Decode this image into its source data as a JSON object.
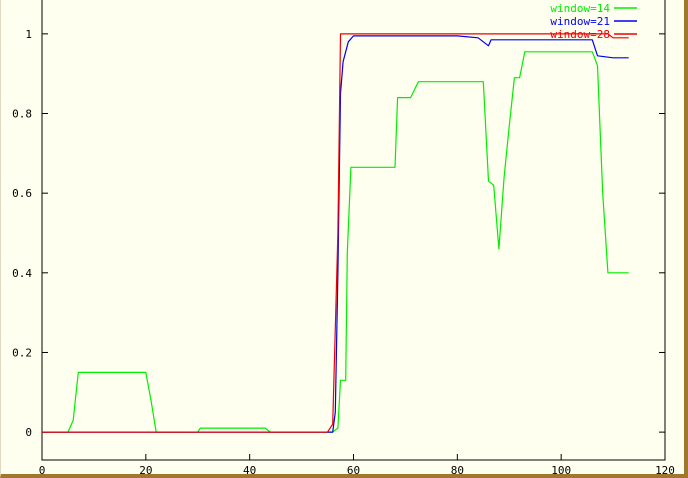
{
  "chart_data": {
    "type": "line",
    "title": "",
    "xlabel": "",
    "ylabel": "",
    "xlim": [
      0,
      120
    ],
    "ylim": [
      -0.07,
      1.08
    ],
    "x_ticks": [
      0,
      20,
      40,
      60,
      80,
      100,
      120
    ],
    "y_ticks": [
      0,
      0.2,
      0.4,
      0.6,
      0.8,
      1
    ],
    "y_tick_labels": [
      "0",
      "0.2",
      "0.4",
      "0.6",
      "0.8",
      "1"
    ],
    "legend_position": "top-right",
    "series": [
      {
        "name": "window=14",
        "color": "#00ee00",
        "points": [
          [
            0,
            0
          ],
          [
            5,
            0
          ],
          [
            6,
            0.03
          ],
          [
            7,
            0.15
          ],
          [
            20,
            0.15
          ],
          [
            21,
            0.08
          ],
          [
            22,
            0
          ],
          [
            30,
            0
          ],
          [
            30.5,
            0.01
          ],
          [
            43,
            0.01
          ],
          [
            44,
            0
          ],
          [
            47,
            0
          ],
          [
            48,
            0
          ],
          [
            56,
            0
          ],
          [
            57,
            0.01
          ],
          [
            57.5,
            0.13
          ],
          [
            58.5,
            0.13
          ],
          [
            58.8,
            0.45
          ],
          [
            59.5,
            0.665
          ],
          [
            68,
            0.665
          ],
          [
            68.5,
            0.84
          ],
          [
            71,
            0.84
          ],
          [
            72.5,
            0.88
          ],
          [
            85,
            0.88
          ],
          [
            86,
            0.63
          ],
          [
            87,
            0.62
          ],
          [
            88,
            0.46
          ],
          [
            89,
            0.64
          ],
          [
            90,
            0.77
          ],
          [
            91,
            0.89
          ],
          [
            92,
            0.89
          ],
          [
            93,
            0.955
          ],
          [
            106,
            0.955
          ],
          [
            107,
            0.92
          ],
          [
            108,
            0.6
          ],
          [
            109,
            0.4
          ],
          [
            113,
            0.4
          ]
        ]
      },
      {
        "name": "window=21",
        "color": "#0000ee",
        "points": [
          [
            0,
            0
          ],
          [
            55,
            0
          ],
          [
            56,
            0
          ],
          [
            56.5,
            0.05
          ],
          [
            57,
            0.4
          ],
          [
            57.5,
            0.85
          ],
          [
            58,
            0.93
          ],
          [
            59,
            0.98
          ],
          [
            60,
            0.995
          ],
          [
            80,
            0.995
          ],
          [
            84,
            0.99
          ],
          [
            86,
            0.97
          ],
          [
            86.5,
            0.985
          ],
          [
            106,
            0.985
          ],
          [
            107,
            0.945
          ],
          [
            110,
            0.94
          ],
          [
            113,
            0.94
          ]
        ]
      },
      {
        "name": "window=28",
        "color": "#ee0000",
        "points": [
          [
            0,
            0
          ],
          [
            55,
            0
          ],
          [
            56,
            0.02
          ],
          [
            57,
            0.5
          ],
          [
            57.5,
            1
          ],
          [
            109,
            1
          ],
          [
            110,
            0.99
          ],
          [
            113,
            0.99
          ]
        ]
      }
    ]
  }
}
